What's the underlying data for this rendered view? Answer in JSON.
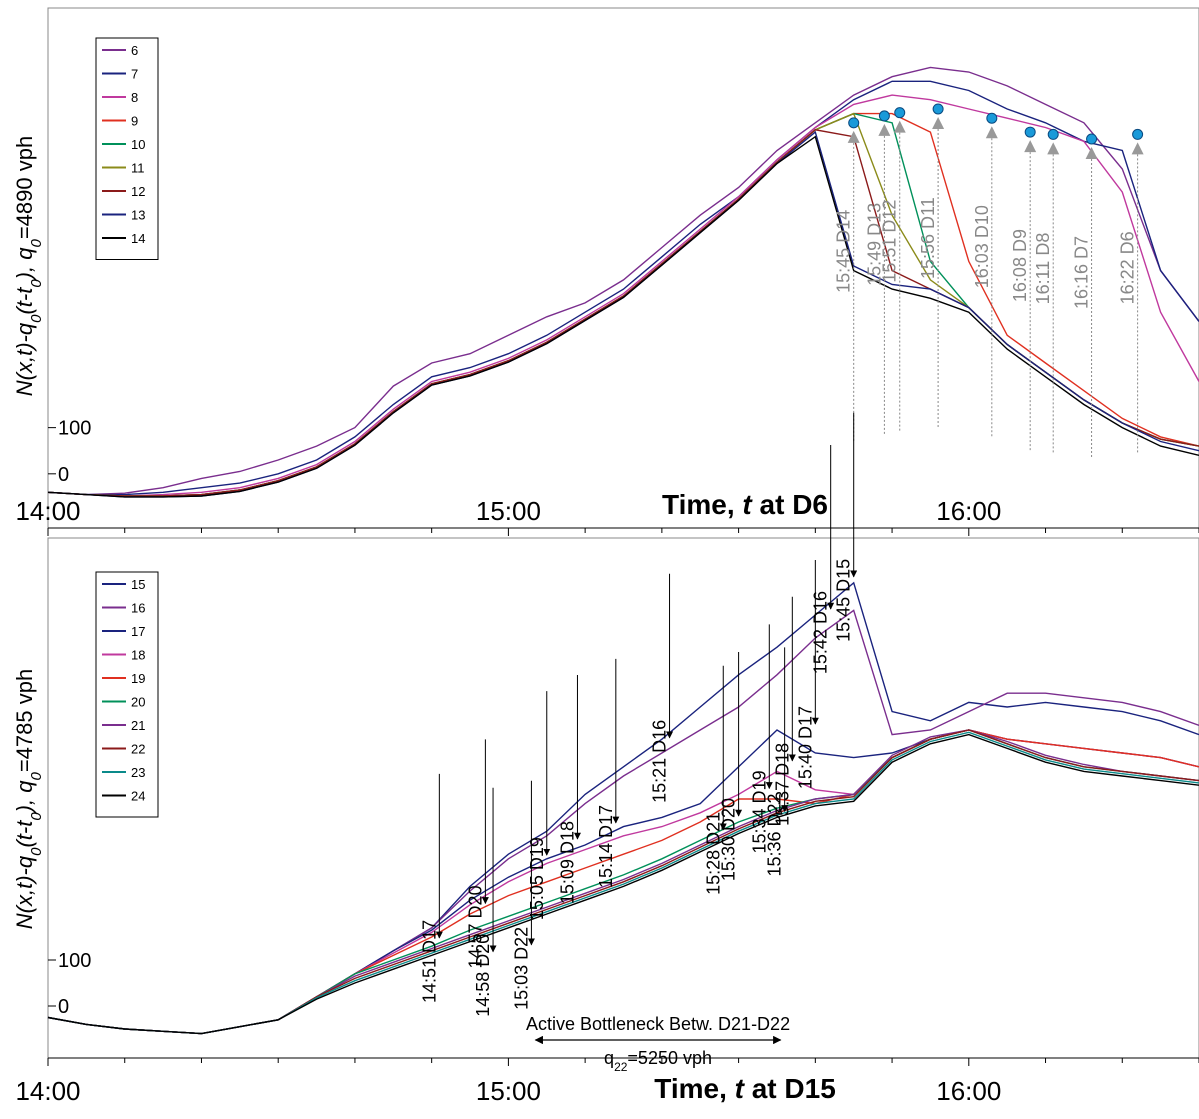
{
  "chart_data": [
    {
      "type": "line",
      "title": "",
      "xlabel": "Time, t at D6",
      "xlabel_prefix": "Time, ",
      "xlabel_var": "t",
      "xlabel_suffix": " at D6",
      "ylabel": "N(x,t)-q0(t-t0), q0=4890 vph",
      "y_label_parts": {
        "q0_value": "=4890 vph"
      },
      "xlim": [
        "14:00",
        "16:30"
      ],
      "ylim": [
        -100,
        1000
      ],
      "grid": false,
      "legend_position": "top-left",
      "x_ticks": [
        "14:00",
        "15:00",
        "16:00"
      ],
      "y_ticks": [
        {
          "label": "100",
          "value": 100
        },
        {
          "label": "0",
          "value": 0
        }
      ],
      "x": [
        "14:00",
        "14:05",
        "14:10",
        "14:15",
        "14:20",
        "14:25",
        "14:30",
        "14:35",
        "14:40",
        "14:45",
        "14:50",
        "14:55",
        "15:00",
        "15:05",
        "15:10",
        "15:15",
        "15:20",
        "15:25",
        "15:30",
        "15:35",
        "15:40",
        "15:45",
        "15:50",
        "15:55",
        "16:00",
        "16:05",
        "16:10",
        "16:15",
        "16:20",
        "16:25",
        "16:30"
      ],
      "series": [
        {
          "name": "6",
          "color": "#7a2e8e",
          "values": [
            -40,
            -45,
            -42,
            -30,
            -10,
            5,
            30,
            60,
            100,
            190,
            240,
            260,
            300,
            340,
            370,
            420,
            490,
            560,
            620,
            700,
            760,
            820,
            860,
            880,
            870,
            840,
            800,
            760,
            660,
            440,
            330
          ]
        },
        {
          "name": "7",
          "color": "#1a237e",
          "values": [
            -40,
            -45,
            -45,
            -40,
            -30,
            -20,
            0,
            30,
            80,
            150,
            210,
            230,
            260,
            300,
            350,
            400,
            470,
            540,
            600,
            680,
            750,
            810,
            850,
            850,
            830,
            790,
            760,
            720,
            700,
            440,
            330
          ]
        },
        {
          "name": "8",
          "color": "#c0399e",
          "values": [
            -40,
            -45,
            -48,
            -45,
            -40,
            -30,
            -10,
            20,
            70,
            140,
            200,
            220,
            250,
            290,
            340,
            390,
            460,
            530,
            600,
            680,
            750,
            800,
            820,
            810,
            790,
            770,
            750,
            720,
            610,
            350,
            200
          ]
        },
        {
          "name": "9",
          "color": "#e03020",
          "values": [
            -40,
            -45,
            -48,
            -48,
            -45,
            -35,
            -15,
            15,
            65,
            135,
            195,
            215,
            245,
            285,
            335,
            385,
            455,
            525,
            595,
            675,
            745,
            780,
            780,
            740,
            460,
            300,
            240,
            180,
            120,
            80,
            60
          ]
        },
        {
          "name": "10",
          "color": "#00905a",
          "values": [
            -40,
            -45,
            -48,
            -48,
            -45,
            -35,
            -15,
            15,
            65,
            135,
            195,
            215,
            245,
            285,
            335,
            385,
            455,
            525,
            595,
            675,
            745,
            780,
            760,
            460,
            360,
            280,
            220,
            160,
            110,
            75,
            60
          ]
        },
        {
          "name": "11",
          "color": "#8b8b1a",
          "values": [
            -40,
            -45,
            -48,
            -48,
            -45,
            -35,
            -15,
            15,
            65,
            135,
            195,
            215,
            245,
            285,
            335,
            385,
            455,
            525,
            595,
            675,
            745,
            780,
            560,
            420,
            360,
            280,
            220,
            160,
            110,
            75,
            60
          ]
        },
        {
          "name": "12",
          "color": "#8b1a1a",
          "values": [
            -40,
            -45,
            -48,
            -48,
            -45,
            -35,
            -15,
            15,
            65,
            135,
            195,
            215,
            245,
            285,
            335,
            385,
            455,
            525,
            595,
            675,
            745,
            730,
            440,
            400,
            360,
            280,
            220,
            160,
            110,
            75,
            60
          ]
        },
        {
          "name": "13",
          "color": "#1a237e",
          "values": [
            -40,
            -45,
            -50,
            -50,
            -48,
            -38,
            -18,
            12,
            62,
            132,
            192,
            212,
            242,
            282,
            332,
            382,
            452,
            522,
            592,
            672,
            740,
            450,
            410,
            400,
            360,
            280,
            220,
            160,
            110,
            70,
            50
          ]
        },
        {
          "name": "14",
          "color": "#000000",
          "values": [
            -40,
            -45,
            -50,
            -50,
            -48,
            -38,
            -18,
            12,
            62,
            132,
            192,
            212,
            242,
            282,
            332,
            382,
            452,
            522,
            592,
            672,
            730,
            440,
            400,
            380,
            350,
            270,
            210,
            150,
            100,
            60,
            40
          ]
        }
      ],
      "annotations": [
        {
          "label": "15:45 D14",
          "x": "15:45",
          "y": 760
        },
        {
          "label": "15:49 D13",
          "x": "15:49",
          "y": 775
        },
        {
          "label": "15:51 D12",
          "x": "15:51",
          "y": 782
        },
        {
          "label": "15:56 D11",
          "x": "15:56",
          "y": 790
        },
        {
          "label": "16:03 D10",
          "x": "16:03",
          "y": 770
        },
        {
          "label": "16:08 D9",
          "x": "16:08",
          "y": 740
        },
        {
          "label": "16:11 D8",
          "x": "16:11",
          "y": 735
        },
        {
          "label": "16:16 D7",
          "x": "16:16",
          "y": 725
        },
        {
          "label": "16:22 D6",
          "x": "16:22",
          "y": 735
        }
      ]
    },
    {
      "type": "line",
      "title": "",
      "xlabel": "Time, t at D15",
      "xlabel_prefix": "Time, ",
      "xlabel_var": "t",
      "xlabel_suffix": " at D15",
      "ylabel": "N(x,t)-q0(t-t0), q0=4785 vph",
      "y_label_parts": {
        "q0_value": "=4785 vph"
      },
      "xlim": [
        "14:00",
        "16:30"
      ],
      "ylim": [
        -100,
        1000
      ],
      "grid": false,
      "legend_position": "top-left",
      "x_ticks": [
        "14:00",
        "15:00",
        "16:00"
      ],
      "y_ticks": [
        {
          "label": "100",
          "value": 100
        },
        {
          "label": "0",
          "value": 0
        }
      ],
      "x": [
        "14:00",
        "14:05",
        "14:10",
        "14:15",
        "14:20",
        "14:25",
        "14:30",
        "14:35",
        "14:40",
        "14:45",
        "14:50",
        "14:55",
        "15:00",
        "15:05",
        "15:10",
        "15:15",
        "15:20",
        "15:25",
        "15:30",
        "15:35",
        "15:40",
        "15:45",
        "15:50",
        "15:55",
        "16:00",
        "16:05",
        "16:10",
        "16:15",
        "16:20",
        "16:25",
        "16:30"
      ],
      "series": [
        {
          "name": "15",
          "color": "#1a237e",
          "values": [
            -25,
            -40,
            -50,
            -55,
            -60,
            -45,
            -30,
            20,
            70,
            120,
            170,
            260,
            330,
            380,
            460,
            520,
            580,
            650,
            720,
            780,
            850,
            920,
            640,
            620,
            660,
            650,
            660,
            650,
            640,
            620,
            590
          ]
        },
        {
          "name": "16",
          "color": "#7a2e8e",
          "values": [
            -25,
            -40,
            -50,
            -55,
            -60,
            -45,
            -30,
            20,
            70,
            120,
            170,
            250,
            320,
            370,
            440,
            500,
            550,
            600,
            650,
            720,
            800,
            860,
            590,
            600,
            640,
            680,
            680,
            670,
            660,
            640,
            610
          ]
        },
        {
          "name": "17",
          "color": "#1a237e",
          "values": [
            -25,
            -40,
            -50,
            -55,
            -60,
            -45,
            -30,
            20,
            70,
            120,
            165,
            230,
            280,
            320,
            350,
            390,
            410,
            440,
            520,
            600,
            550,
            540,
            550,
            580,
            600,
            580,
            570,
            560,
            550,
            540,
            520
          ]
        },
        {
          "name": "18",
          "color": "#c0399e",
          "values": [
            -25,
            -40,
            -50,
            -55,
            -60,
            -45,
            -30,
            20,
            70,
            115,
            160,
            220,
            270,
            310,
            340,
            370,
            390,
            420,
            460,
            510,
            470,
            460,
            540,
            580,
            600,
            580,
            570,
            560,
            550,
            540,
            520
          ]
        },
        {
          "name": "19",
          "color": "#e03020",
          "values": [
            -25,
            -40,
            -50,
            -55,
            -60,
            -45,
            -30,
            20,
            70,
            110,
            150,
            200,
            240,
            270,
            300,
            330,
            360,
            400,
            450,
            450,
            440,
            460,
            540,
            580,
            600,
            580,
            570,
            560,
            550,
            540,
            520
          ]
        },
        {
          "name": "20",
          "color": "#00905a",
          "values": [
            -25,
            -40,
            -50,
            -55,
            -60,
            -45,
            -30,
            20,
            70,
            100,
            130,
            165,
            195,
            225,
            255,
            285,
            320,
            360,
            400,
            430,
            450,
            460,
            540,
            580,
            600,
            570,
            540,
            520,
            510,
            500,
            490
          ]
        },
        {
          "name": "21",
          "color": "#7a2e8e",
          "values": [
            -25,
            -40,
            -50,
            -55,
            -60,
            -45,
            -30,
            20,
            65,
            95,
            125,
            155,
            185,
            215,
            245,
            275,
            310,
            350,
            390,
            425,
            450,
            460,
            545,
            585,
            600,
            575,
            545,
            525,
            510,
            500,
            490
          ]
        },
        {
          "name": "22",
          "color": "#8b1a1a",
          "values": [
            -25,
            -40,
            -50,
            -55,
            -60,
            -45,
            -30,
            20,
            60,
            90,
            120,
            150,
            180,
            210,
            240,
            270,
            305,
            345,
            385,
            420,
            445,
            455,
            540,
            580,
            600,
            570,
            540,
            520,
            510,
            500,
            490
          ]
        },
        {
          "name": "23",
          "color": "#0a8a8a",
          "values": [
            -25,
            -40,
            -50,
            -55,
            -60,
            -45,
            -30,
            18,
            55,
            85,
            115,
            145,
            175,
            205,
            235,
            265,
            300,
            340,
            380,
            415,
            440,
            450,
            535,
            575,
            595,
            565,
            535,
            515,
            505,
            495,
            485
          ]
        },
        {
          "name": "24",
          "color": "#000000",
          "values": [
            -25,
            -40,
            -50,
            -55,
            -60,
            -45,
            -30,
            15,
            50,
            80,
            110,
            140,
            170,
            200,
            230,
            260,
            295,
            335,
            375,
            410,
            435,
            445,
            530,
            570,
            590,
            560,
            530,
            510,
            500,
            490,
            480
          ]
        }
      ],
      "annotations": [
        {
          "label": "14:51 D17",
          "x": "14:51",
          "y": 135
        },
        {
          "label": "14:58 D20",
          "x": "14:58",
          "y": 105
        },
        {
          "label": "14:57 D20",
          "x": "14:57",
          "y": 210
        },
        {
          "label": "15:05 D19",
          "x": "15:05",
          "y": 315
        },
        {
          "label": "15:09 D18",
          "x": "15:09",
          "y": 350
        },
        {
          "label": "15:14 D17",
          "x": "15:14",
          "y": 385
        },
        {
          "label": "15:21 D16",
          "x": "15:21",
          "y": 570
        },
        {
          "label": "15:03 D22",
          "x": "15:03",
          "y": 120
        },
        {
          "label": "15:36 D22",
          "x": "15:36",
          "y": 410
        },
        {
          "label": "15:28 D21",
          "x": "15:28",
          "y": 370
        },
        {
          "label": "15:30 D20",
          "x": "15:30",
          "y": 400
        },
        {
          "label": "15:34 D19",
          "x": "15:34",
          "y": 460
        },
        {
          "label": "15:37 D18",
          "x": "15:37",
          "y": 520
        },
        {
          "label": "15:40 D17",
          "x": "15:40",
          "y": 600
        },
        {
          "label": "15:42 D16",
          "x": "15:42",
          "y": 850
        },
        {
          "label": "15:45 D15",
          "x": "15:45",
          "y": 920
        }
      ],
      "bottleneck": {
        "label": "Active Bottleneck Betw. D21-D22",
        "q_label": "q",
        "q_sub": "22",
        "q_value": "=5250 vph",
        "x_start": "15:03",
        "x_end": "15:36"
      }
    }
  ]
}
